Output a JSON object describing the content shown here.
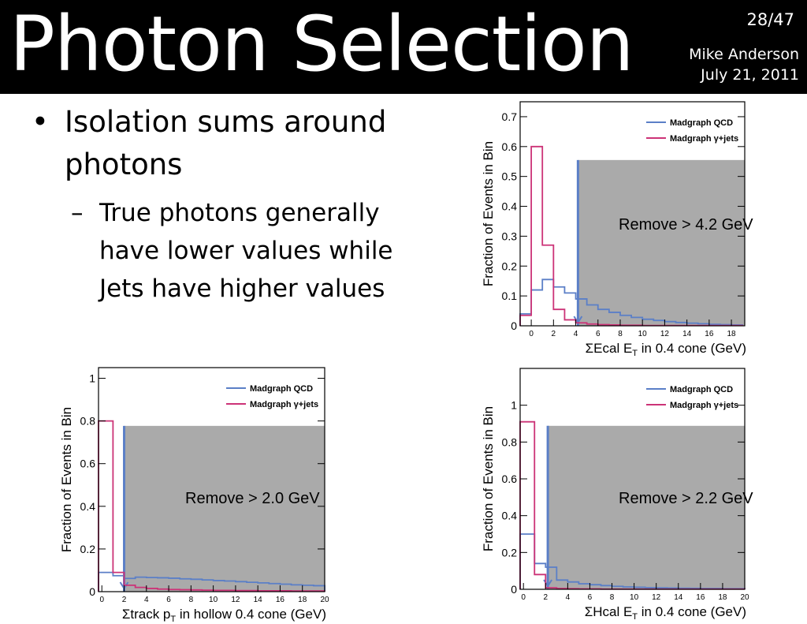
{
  "header": {
    "title": "Photon Selection",
    "slide_number": "28/47",
    "author": "Mike Anderson",
    "date": "July 21, 2011"
  },
  "bullets": {
    "main": "Isolation sums around photons",
    "sub": "True photons generally have lower values while Jets have higher values"
  },
  "legend": {
    "qcd": "Madgraph QCD",
    "gjets": "Madgraph γ+jets"
  },
  "colors": {
    "qcd": "#5b7fc7",
    "gjets": "#cc3377",
    "cut_region": "#aaaaaa"
  },
  "chart_data": [
    {
      "type": "line",
      "name": "ecal",
      "xlabel": "ΣEcal E_T in 0.4 cone (GeV)",
      "ylabel": "Fraction of Events in Bin",
      "xlim": [
        -1,
        19.2
      ],
      "ylim": [
        0,
        0.75
      ],
      "xticks": [
        0,
        2,
        4,
        6,
        8,
        10,
        12,
        14,
        16,
        18
      ],
      "yticks": [
        0,
        0.1,
        0.2,
        0.3,
        0.4,
        0.5,
        0.6,
        0.7
      ],
      "ytick_labels": [
        "0",
        "0.1",
        "0.2",
        "0.3",
        "0.4",
        "0.5",
        "0.6",
        "0.7"
      ],
      "bin_edges": [
        -1,
        0,
        1,
        2,
        3,
        4,
        5,
        6,
        7,
        8,
        9,
        10,
        11,
        12,
        13,
        14,
        15,
        16,
        17,
        18,
        19
      ],
      "series": [
        {
          "name": "Madgraph QCD",
          "values": [
            0.04,
            0.12,
            0.155,
            0.13,
            0.11,
            0.09,
            0.07,
            0.055,
            0.045,
            0.035,
            0.028,
            0.022,
            0.018,
            0.014,
            0.011,
            0.009,
            0.007,
            0.005,
            0.004,
            0.003
          ]
        },
        {
          "name": "Madgraph γ+jets",
          "values": [
            0.035,
            0.6,
            0.27,
            0.055,
            0.02,
            0.01,
            0.006,
            0.004,
            0.003,
            0.002,
            0.002,
            0.001,
            0.001,
            0.001,
            0.001,
            0.001,
            0.001,
            0.001,
            0.001,
            0.001
          ]
        }
      ],
      "cut": 4.2,
      "annotation": "Remove > 4.2 GeV"
    },
    {
      "type": "line",
      "name": "track",
      "xlabel": "Σtrack p_T in hollow 0.4 cone (GeV)",
      "ylabel": "Fraction of Events in Bin",
      "xlim": [
        -0.3,
        20
      ],
      "ylim": [
        0,
        1.05
      ],
      "xticks": [
        0,
        2,
        4,
        6,
        8,
        10,
        12,
        14,
        16,
        18,
        20
      ],
      "yticks": [
        0,
        0.2,
        0.4,
        0.6,
        0.8,
        1
      ],
      "ytick_labels": [
        "0",
        "0.2",
        "0.4",
        "0.6",
        "0.8",
        "1"
      ],
      "bin_edges": [
        -0.3,
        1,
        2,
        3,
        4,
        5,
        6,
        7,
        8,
        9,
        10,
        11,
        12,
        13,
        14,
        15,
        16,
        17,
        18,
        19,
        20
      ],
      "series": [
        {
          "name": "Madgraph QCD",
          "values": [
            0.09,
            0.075,
            0.062,
            0.068,
            0.066,
            0.065,
            0.063,
            0.06,
            0.058,
            0.055,
            0.052,
            0.05,
            0.047,
            0.044,
            0.041,
            0.038,
            0.035,
            0.032,
            0.03,
            0.028
          ]
        },
        {
          "name": "Madgraph γ+jets",
          "values": [
            0.8,
            0.09,
            0.03,
            0.02,
            0.015,
            0.012,
            0.01,
            0.009,
            0.008,
            0.007,
            0.006,
            0.006,
            0.005,
            0.005,
            0.004,
            0.004,
            0.004,
            0.003,
            0.003,
            0.003
          ]
        }
      ],
      "cut": 2.0,
      "annotation": "Remove > 2.0 GeV"
    },
    {
      "type": "line",
      "name": "hcal",
      "xlabel": "ΣHcal E_T in 0.4 cone (GeV)",
      "ylabel": "Fraction of Events in Bin",
      "xlim": [
        -0.3,
        20
      ],
      "ylim": [
        0,
        1.2
      ],
      "xticks": [
        0,
        2,
        4,
        6,
        8,
        10,
        12,
        14,
        16,
        18,
        20
      ],
      "yticks": [
        0,
        0.2,
        0.4,
        0.6,
        0.8,
        1
      ],
      "ytick_labels": [
        "0",
        "0.2",
        "0.4",
        "0.6",
        "0.8",
        "1"
      ],
      "bin_edges": [
        -0.3,
        1,
        2,
        3,
        4,
        5,
        6,
        7,
        8,
        9,
        10,
        11,
        12,
        13,
        14,
        15,
        16,
        17,
        18,
        19,
        20
      ],
      "series": [
        {
          "name": "Madgraph QCD",
          "values": [
            0.3,
            0.14,
            0.12,
            0.05,
            0.04,
            0.03,
            0.025,
            0.02,
            0.016,
            0.013,
            0.011,
            0.009,
            0.008,
            0.007,
            0.006,
            0.005,
            0.004,
            0.004,
            0.003,
            0.003
          ]
        },
        {
          "name": "Madgraph γ+jets",
          "values": [
            0.91,
            0.08,
            0.008,
            0.004,
            0.003,
            0.002,
            0.002,
            0.001,
            0.001,
            0.001,
            0.001,
            0.001,
            0.001,
            0.001,
            0.001,
            0.001,
            0.001,
            0.001,
            0.001,
            0.001
          ]
        }
      ],
      "cut": 2.2,
      "annotation": "Remove > 2.2 GeV"
    }
  ]
}
